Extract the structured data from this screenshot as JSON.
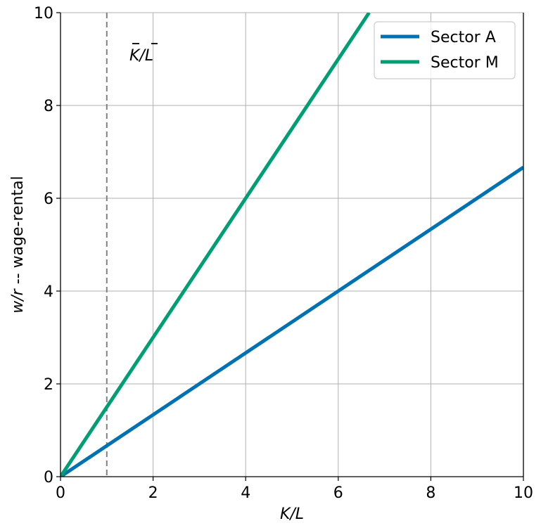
{
  "chart_data": {
    "type": "line",
    "title": "",
    "xlabel": "K/L",
    "ylabel": "w/r -- wage-rental",
    "xlim": [
      0,
      10
    ],
    "ylim": [
      0,
      10
    ],
    "xticks": [
      0,
      2,
      4,
      6,
      8,
      10
    ],
    "yticks": [
      0,
      2,
      4,
      6,
      8,
      10
    ],
    "grid": true,
    "legend_position": "upper right",
    "series": [
      {
        "name": "Sector A",
        "color": "#0072B2",
        "x": [
          0,
          10
        ],
        "y": [
          0,
          6.667
        ],
        "slope": 0.6667
      },
      {
        "name": "Sector M",
        "color": "#009E73",
        "x": [
          0,
          6.667
        ],
        "y": [
          0,
          10
        ],
        "slope": 1.5
      }
    ],
    "vline": {
      "x": 1,
      "style": "dashed",
      "color": "#808080"
    },
    "annotations": [
      {
        "text": "K̄/L̄",
        "x": 1.5,
        "y": 9.0
      }
    ]
  },
  "labels": {
    "xlabel_italic": "K/L",
    "ylabel_var": "w/r",
    "ylabel_rest": " -- wage-rental",
    "annotation": "K/L"
  }
}
